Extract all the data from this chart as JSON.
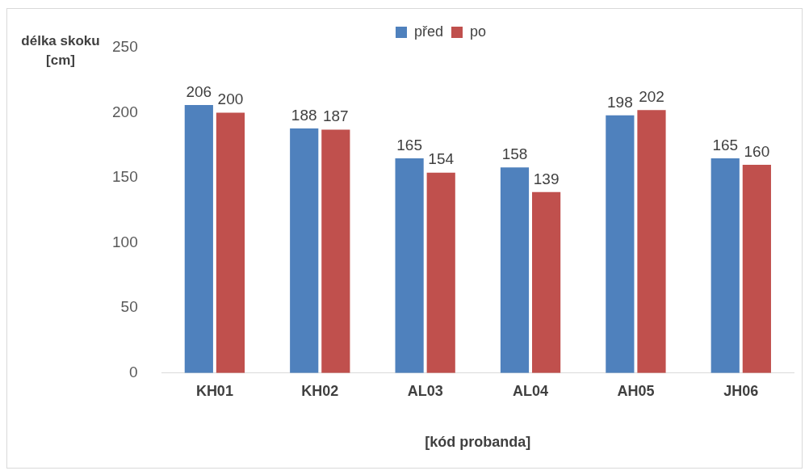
{
  "chart_data": {
    "type": "bar",
    "ylabel": "délka skoku [cm]",
    "xlabel": "[kód probanda]",
    "categories": [
      "KH01",
      "KH02",
      "AL03",
      "AL04",
      "AH05",
      "JH06"
    ],
    "series": [
      {
        "name": "před",
        "color": "#4f81bd",
        "values": [
          206,
          188,
          165,
          158,
          198,
          165
        ]
      },
      {
        "name": "po",
        "color": "#c0504d",
        "values": [
          200,
          187,
          154,
          139,
          202,
          160
        ]
      }
    ],
    "ylim": [
      0,
      250
    ],
    "yticks": [
      0,
      50,
      100,
      150,
      200,
      250
    ],
    "grid": false,
    "legend": "top",
    "data_labels": true
  }
}
